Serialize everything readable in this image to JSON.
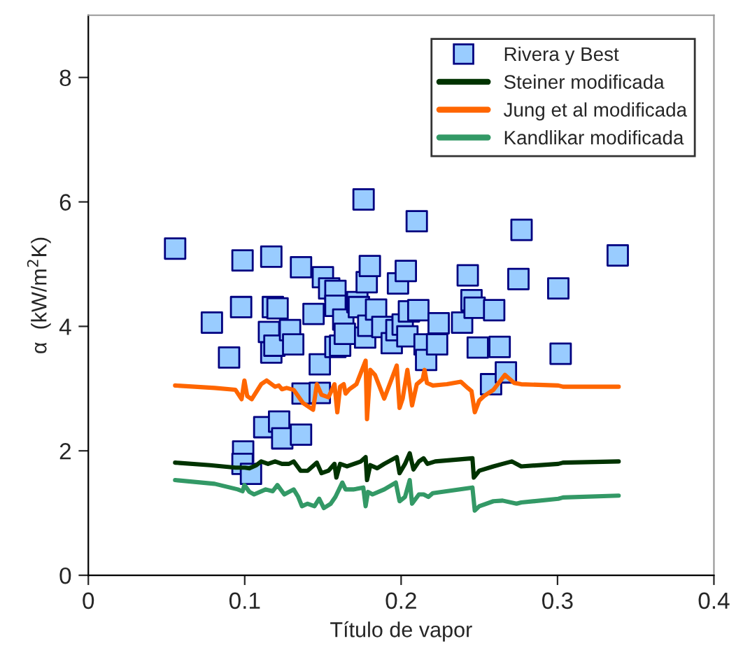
{
  "chart_data": {
    "type": "scatter",
    "xlabel": "Título de vapor",
    "ylabel": "α  (kW/m$^{2}$K)",
    "xlim": [
      0,
      0.4
    ],
    "ylim": [
      0,
      9
    ],
    "xticks": [
      0,
      0.1,
      0.2,
      0.3,
      0.4
    ],
    "yticks": [
      0,
      2,
      4,
      6,
      8
    ],
    "grid": false,
    "legend": "top right",
    "series": [
      {
        "name": "Rivera y Best",
        "marker": "square",
        "color": "#99ccff",
        "x": [
          0.0555,
          0.079,
          0.09,
          0.0977,
          0.0986,
          0.099,
          0.0986,
          0.104,
          0.1125,
          0.122,
          0.124,
          0.136,
          0.117,
          0.118,
          0.121,
          0.1155,
          0.117,
          0.119,
          0.129,
          0.131,
          0.136,
          0.137,
          0.144,
          0.148,
          0.148,
          0.15,
          0.154,
          0.158,
          0.158,
          0.158,
          0.161,
          0.163,
          0.164,
          0.172,
          0.173,
          0.176,
          0.177,
          0.178,
          0.179,
          0.18,
          0.184,
          0.188,
          0.194,
          0.197,
          0.198,
          0.201,
          0.203,
          0.205,
          0.204,
          0.21,
          0.211,
          0.215,
          0.216,
          0.224,
          0.223,
          0.239,
          0.2426,
          0.245,
          0.247,
          0.249,
          0.2575,
          0.2595,
          0.263,
          0.267,
          0.275,
          0.277,
          0.3005,
          0.302,
          0.3385
        ],
        "values": [
          5.25,
          4.06,
          3.5,
          4.31,
          5.06,
          1.99,
          1.79,
          1.63,
          2.38,
          2.47,
          2.2,
          2.26,
          5.12,
          4.31,
          4.29,
          3.91,
          3.58,
          3.69,
          3.94,
          3.71,
          4.95,
          2.92,
          4.2,
          3.39,
          2.93,
          4.79,
          4.61,
          4.57,
          4.33,
          3.67,
          3.69,
          4.11,
          3.88,
          4.39,
          4.31,
          6.04,
          3.82,
          4.71,
          4.01,
          4.97,
          4.27,
          3.99,
          3.73,
          3.94,
          4.69,
          4.03,
          4.89,
          4.24,
          3.84,
          5.69,
          4.26,
          3.71,
          3.46,
          4.05,
          3.71,
          4.06,
          4.82,
          4.42,
          4.3,
          3.66,
          3.07,
          4.26,
          3.67,
          3.26,
          4.76,
          5.55,
          4.61,
          3.56,
          5.14
        ]
      },
      {
        "name": "Steiner modificada",
        "type": "line",
        "marker": "none",
        "line_style": "solid",
        "color": "#003300",
        "x": [
          0.0555,
          0.0778,
          0.0941,
          0.1001,
          0.103,
          0.1075,
          0.1105,
          0.1149,
          0.1194,
          0.1238,
          0.1283,
          0.1313,
          0.1357,
          0.1402,
          0.1461,
          0.1491,
          0.1535,
          0.1574,
          0.1586,
          0.161,
          0.1654,
          0.1743,
          0.1773,
          0.1782,
          0.1803,
          0.1847,
          0.1892,
          0.1972,
          0.199,
          0.2025,
          0.2055,
          0.2079,
          0.2114,
          0.2144,
          0.2168,
          0.2218,
          0.2456,
          0.2465,
          0.25,
          0.259,
          0.2649,
          0.2708,
          0.2768,
          0.3005,
          0.3035,
          0.3391
        ],
        "values": [
          1.81,
          1.77,
          1.73,
          1.73,
          1.72,
          1.77,
          1.83,
          1.79,
          1.83,
          1.79,
          1.79,
          1.83,
          1.68,
          1.68,
          1.81,
          1.64,
          1.68,
          1.79,
          1.57,
          1.79,
          1.75,
          1.83,
          1.9,
          1.53,
          1.77,
          1.72,
          1.79,
          1.9,
          1.64,
          1.79,
          1.96,
          1.7,
          1.83,
          1.88,
          1.79,
          1.83,
          1.88,
          1.57,
          1.68,
          1.75,
          1.79,
          1.83,
          1.75,
          1.79,
          1.81,
          1.83
        ]
      },
      {
        "name": "Jung et al modificada",
        "type": "line",
        "marker": "none",
        "line_style": "solid",
        "color": "#ff6600",
        "x": [
          0.0555,
          0.0808,
          0.0941,
          0.098,
          0.0998,
          0.1016,
          0.1045,
          0.1105,
          0.114,
          0.1194,
          0.1218,
          0.1238,
          0.1268,
          0.1313,
          0.1372,
          0.1437,
          0.1461,
          0.1491,
          0.1535,
          0.1574,
          0.1592,
          0.161,
          0.1633,
          0.1645,
          0.1669,
          0.1714,
          0.1773,
          0.1782,
          0.1803,
          0.1833,
          0.1892,
          0.1972,
          0.199,
          0.201,
          0.204,
          0.207,
          0.21,
          0.2138,
          0.215,
          0.2165,
          0.2203,
          0.2293,
          0.2382,
          0.2426,
          0.245,
          0.2471,
          0.25,
          0.253,
          0.259,
          0.2664,
          0.2723,
          0.2768,
          0.3005,
          0.3035,
          0.3391
        ],
        "values": [
          3.05,
          3.01,
          2.98,
          2.83,
          3.13,
          2.88,
          2.83,
          3.07,
          3.13,
          3.03,
          3.05,
          2.99,
          3.01,
          2.98,
          2.77,
          2.66,
          3.07,
          2.9,
          2.86,
          3.07,
          2.62,
          3.03,
          3.07,
          2.92,
          2.99,
          3.07,
          3.45,
          2.51,
          3.3,
          3.22,
          2.84,
          3.37,
          2.69,
          2.84,
          3.3,
          2.73,
          3.07,
          3.15,
          3.3,
          3.09,
          3.05,
          3.07,
          3.11,
          3.01,
          2.96,
          2.62,
          2.81,
          2.88,
          2.98,
          3.22,
          3.09,
          3.07,
          3.05,
          3.03,
          3.03
        ]
      },
      {
        "name": "Kandlikar modificada",
        "type": "line",
        "marker": "none",
        "line_style": "solid",
        "color": "#339966",
        "x": [
          0.0555,
          0.0808,
          0.0956,
          0.0986,
          0.0998,
          0.103,
          0.106,
          0.1134,
          0.1179,
          0.1209,
          0.1253,
          0.1313,
          0.1342,
          0.1366,
          0.1402,
          0.1446,
          0.1476,
          0.1506,
          0.155,
          0.158,
          0.1624,
          0.1645,
          0.1699,
          0.1758,
          0.1773,
          0.1788,
          0.1817,
          0.1892,
          0.1966,
          0.199,
          0.2025,
          0.2055,
          0.207,
          0.2114,
          0.2144,
          0.2174,
          0.2203,
          0.2456,
          0.2471,
          0.25,
          0.259,
          0.2649,
          0.2738,
          0.2768,
          0.3005,
          0.3035,
          0.3391
        ],
        "values": [
          1.53,
          1.47,
          1.38,
          1.35,
          1.45,
          1.34,
          1.3,
          1.38,
          1.35,
          1.45,
          1.3,
          1.38,
          1.26,
          1.11,
          1.15,
          1.11,
          1.23,
          1.08,
          1.15,
          1.26,
          1.49,
          1.38,
          1.38,
          1.41,
          1.11,
          1.34,
          1.3,
          1.38,
          1.49,
          1.19,
          1.26,
          1.53,
          1.15,
          1.3,
          1.3,
          1.26,
          1.32,
          1.41,
          1.04,
          1.11,
          1.19,
          1.2,
          1.15,
          1.17,
          1.23,
          1.25,
          1.28
        ]
      }
    ]
  }
}
